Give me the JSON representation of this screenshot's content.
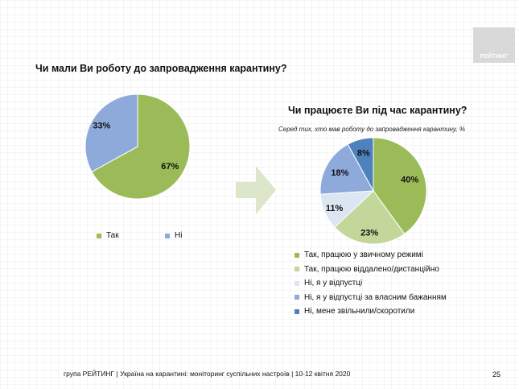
{
  "logo_text": "РЕЙТИНГ",
  "footer": "група РЕЙТИНГ | Україна на карантині: моніторинг суспільних настроїв  | 10-12 квітня  2020",
  "page_number": "25",
  "chart_data": [
    {
      "type": "pie",
      "title": "Чи мали Ви роботу до запровадження карантину?",
      "categories": [
        "Так",
        "Ні"
      ],
      "values": [
        67,
        33
      ],
      "labels": [
        "67%",
        "33%"
      ],
      "colors": [
        "#9bbb59",
        "#8eaadb"
      ],
      "legend": "bottom"
    },
    {
      "type": "pie",
      "title": "Чи працюєте Ви під час карантину?",
      "subtitle": "Серед тих, хто мав роботу до запровадження карантину, %",
      "categories": [
        "Так, працюю у звичному режимі",
        "Так, працюю віддалено/дистанційно",
        "Ні, я у відпустці",
        "Ні, я у відпустці за власним бажанням",
        "Ні, мене звільнили/скоротили"
      ],
      "values": [
        40,
        23,
        11,
        18,
        8
      ],
      "labels": [
        "40%",
        "23%",
        "11%",
        "18%",
        "8%"
      ],
      "colors": [
        "#9bbb59",
        "#c4d79b",
        "#dce6f2",
        "#8eaadb",
        "#4f81bd"
      ],
      "legend": "bottom"
    }
  ]
}
